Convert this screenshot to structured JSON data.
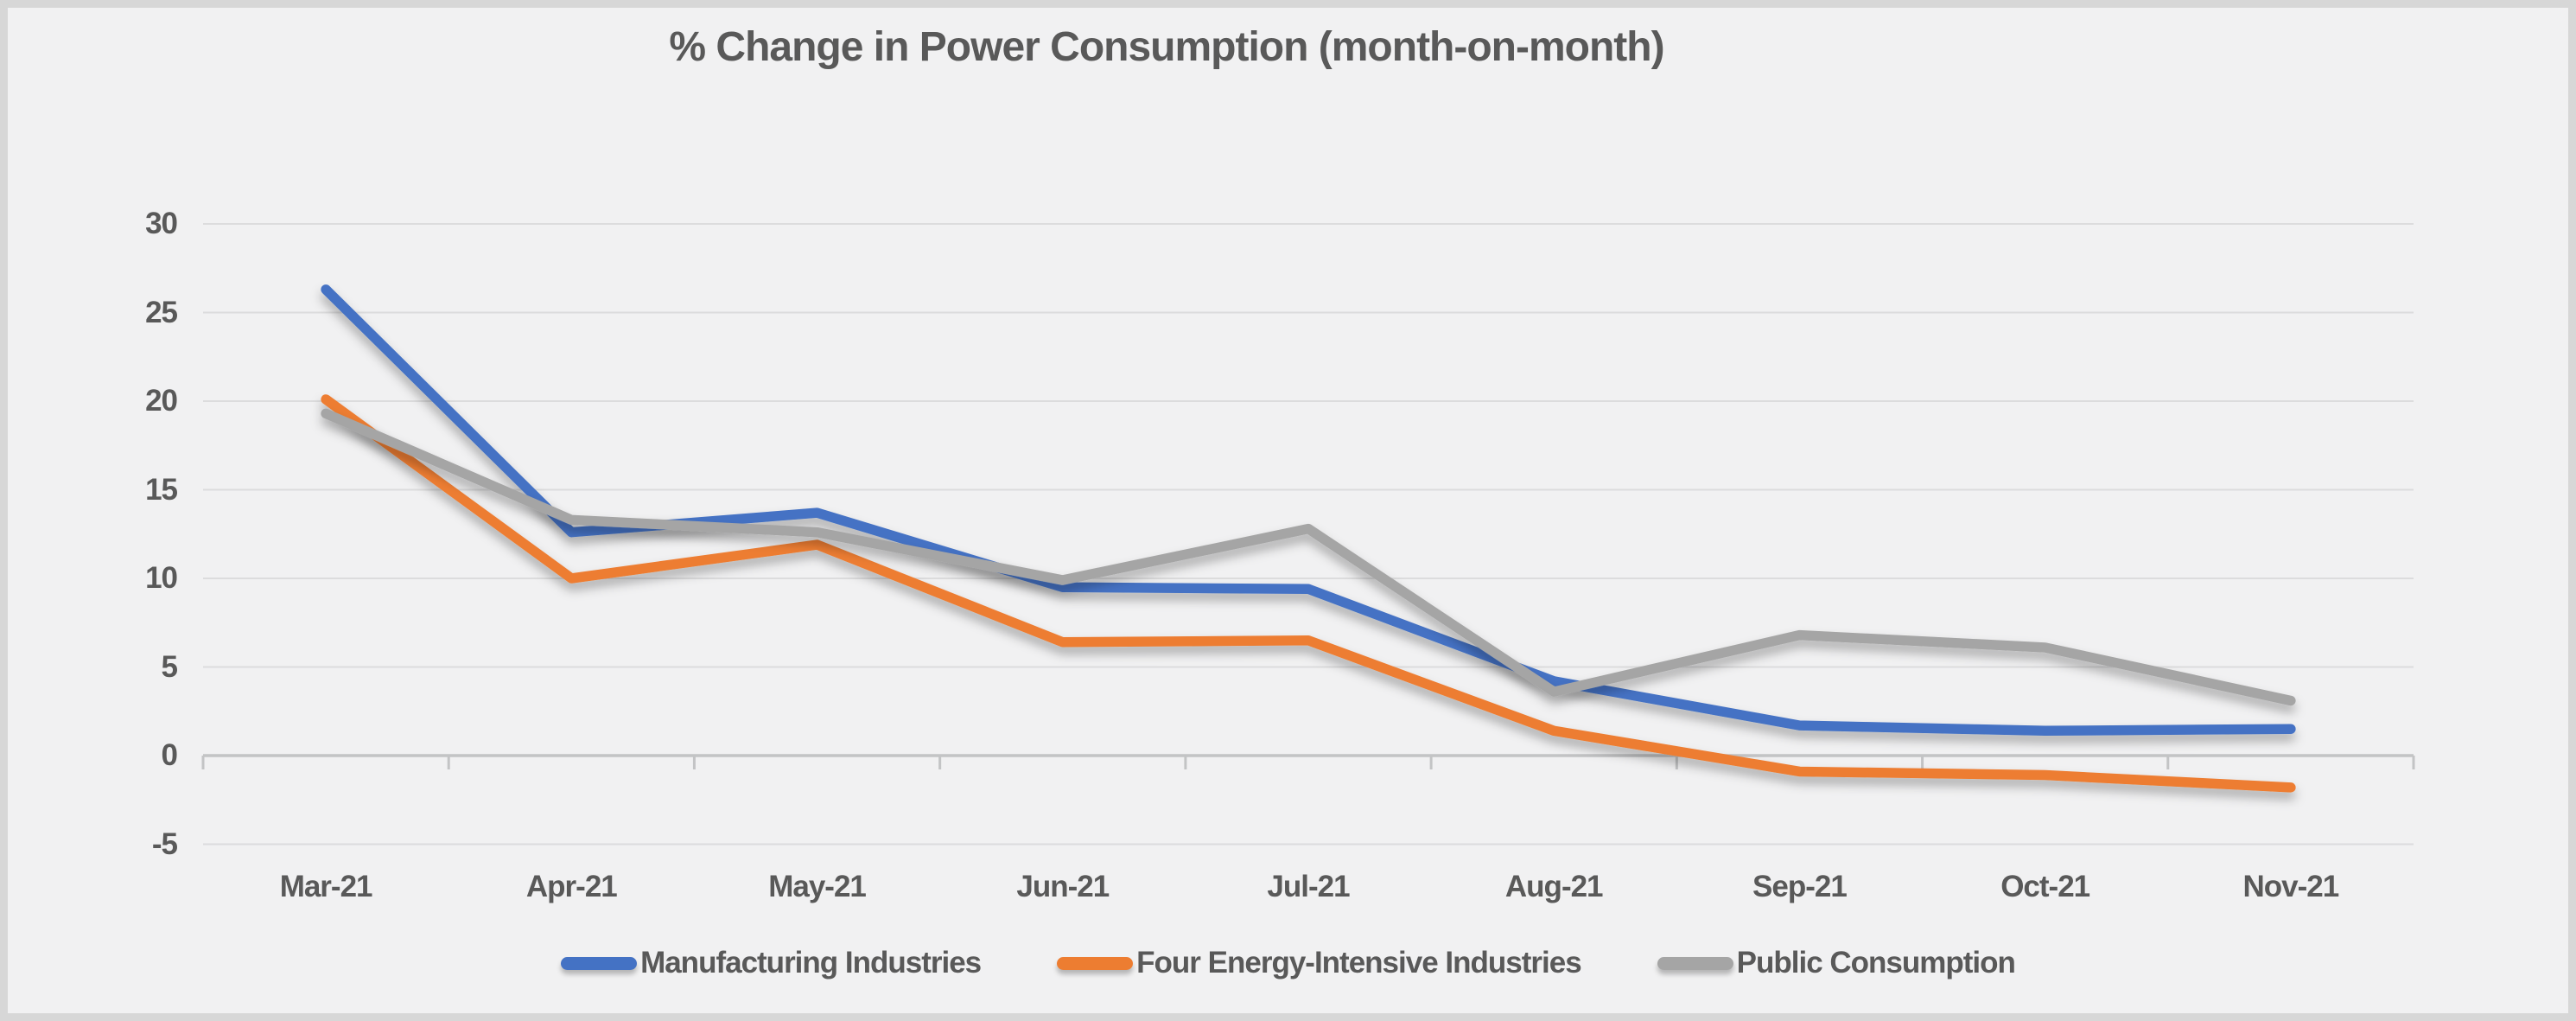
{
  "chart_data": {
    "type": "line",
    "title": "% Change in Power Consumption (month-on-month)",
    "xlabel": "",
    "ylabel": "",
    "categories": [
      "Mar-21",
      "Apr-21",
      "May-21",
      "Jun-21",
      "Jul-21",
      "Aug-21",
      "Sep-21",
      "Oct-21",
      "Nov-21"
    ],
    "series": [
      {
        "name": "Manufacturing Industries",
        "color": "#4472C4",
        "values": [
          26.3,
          12.6,
          13.7,
          9.5,
          9.4,
          4.2,
          1.7,
          1.4,
          1.5
        ]
      },
      {
        "name": "Four Energy-Intensive Industries",
        "color": "#ED7D31",
        "values": [
          20.1,
          10.0,
          11.9,
          6.4,
          6.5,
          1.4,
          -0.9,
          -1.1,
          -1.8
        ]
      },
      {
        "name": "Public Consumption",
        "color": "#A5A5A5",
        "values": [
          19.3,
          13.3,
          12.6,
          9.9,
          12.8,
          3.6,
          6.8,
          6.1,
          3.1
        ]
      }
    ],
    "ylim": [
      -5,
      30
    ],
    "yticks": [
      30,
      25,
      20,
      15,
      10,
      5,
      0,
      -5
    ],
    "grid": "horizontal",
    "legend_position": "bottom",
    "colors": {
      "text": "#595959",
      "gridline": "#dcdcdd",
      "axis_line": "#c3c4c5",
      "background": "#f1f1f2"
    }
  }
}
